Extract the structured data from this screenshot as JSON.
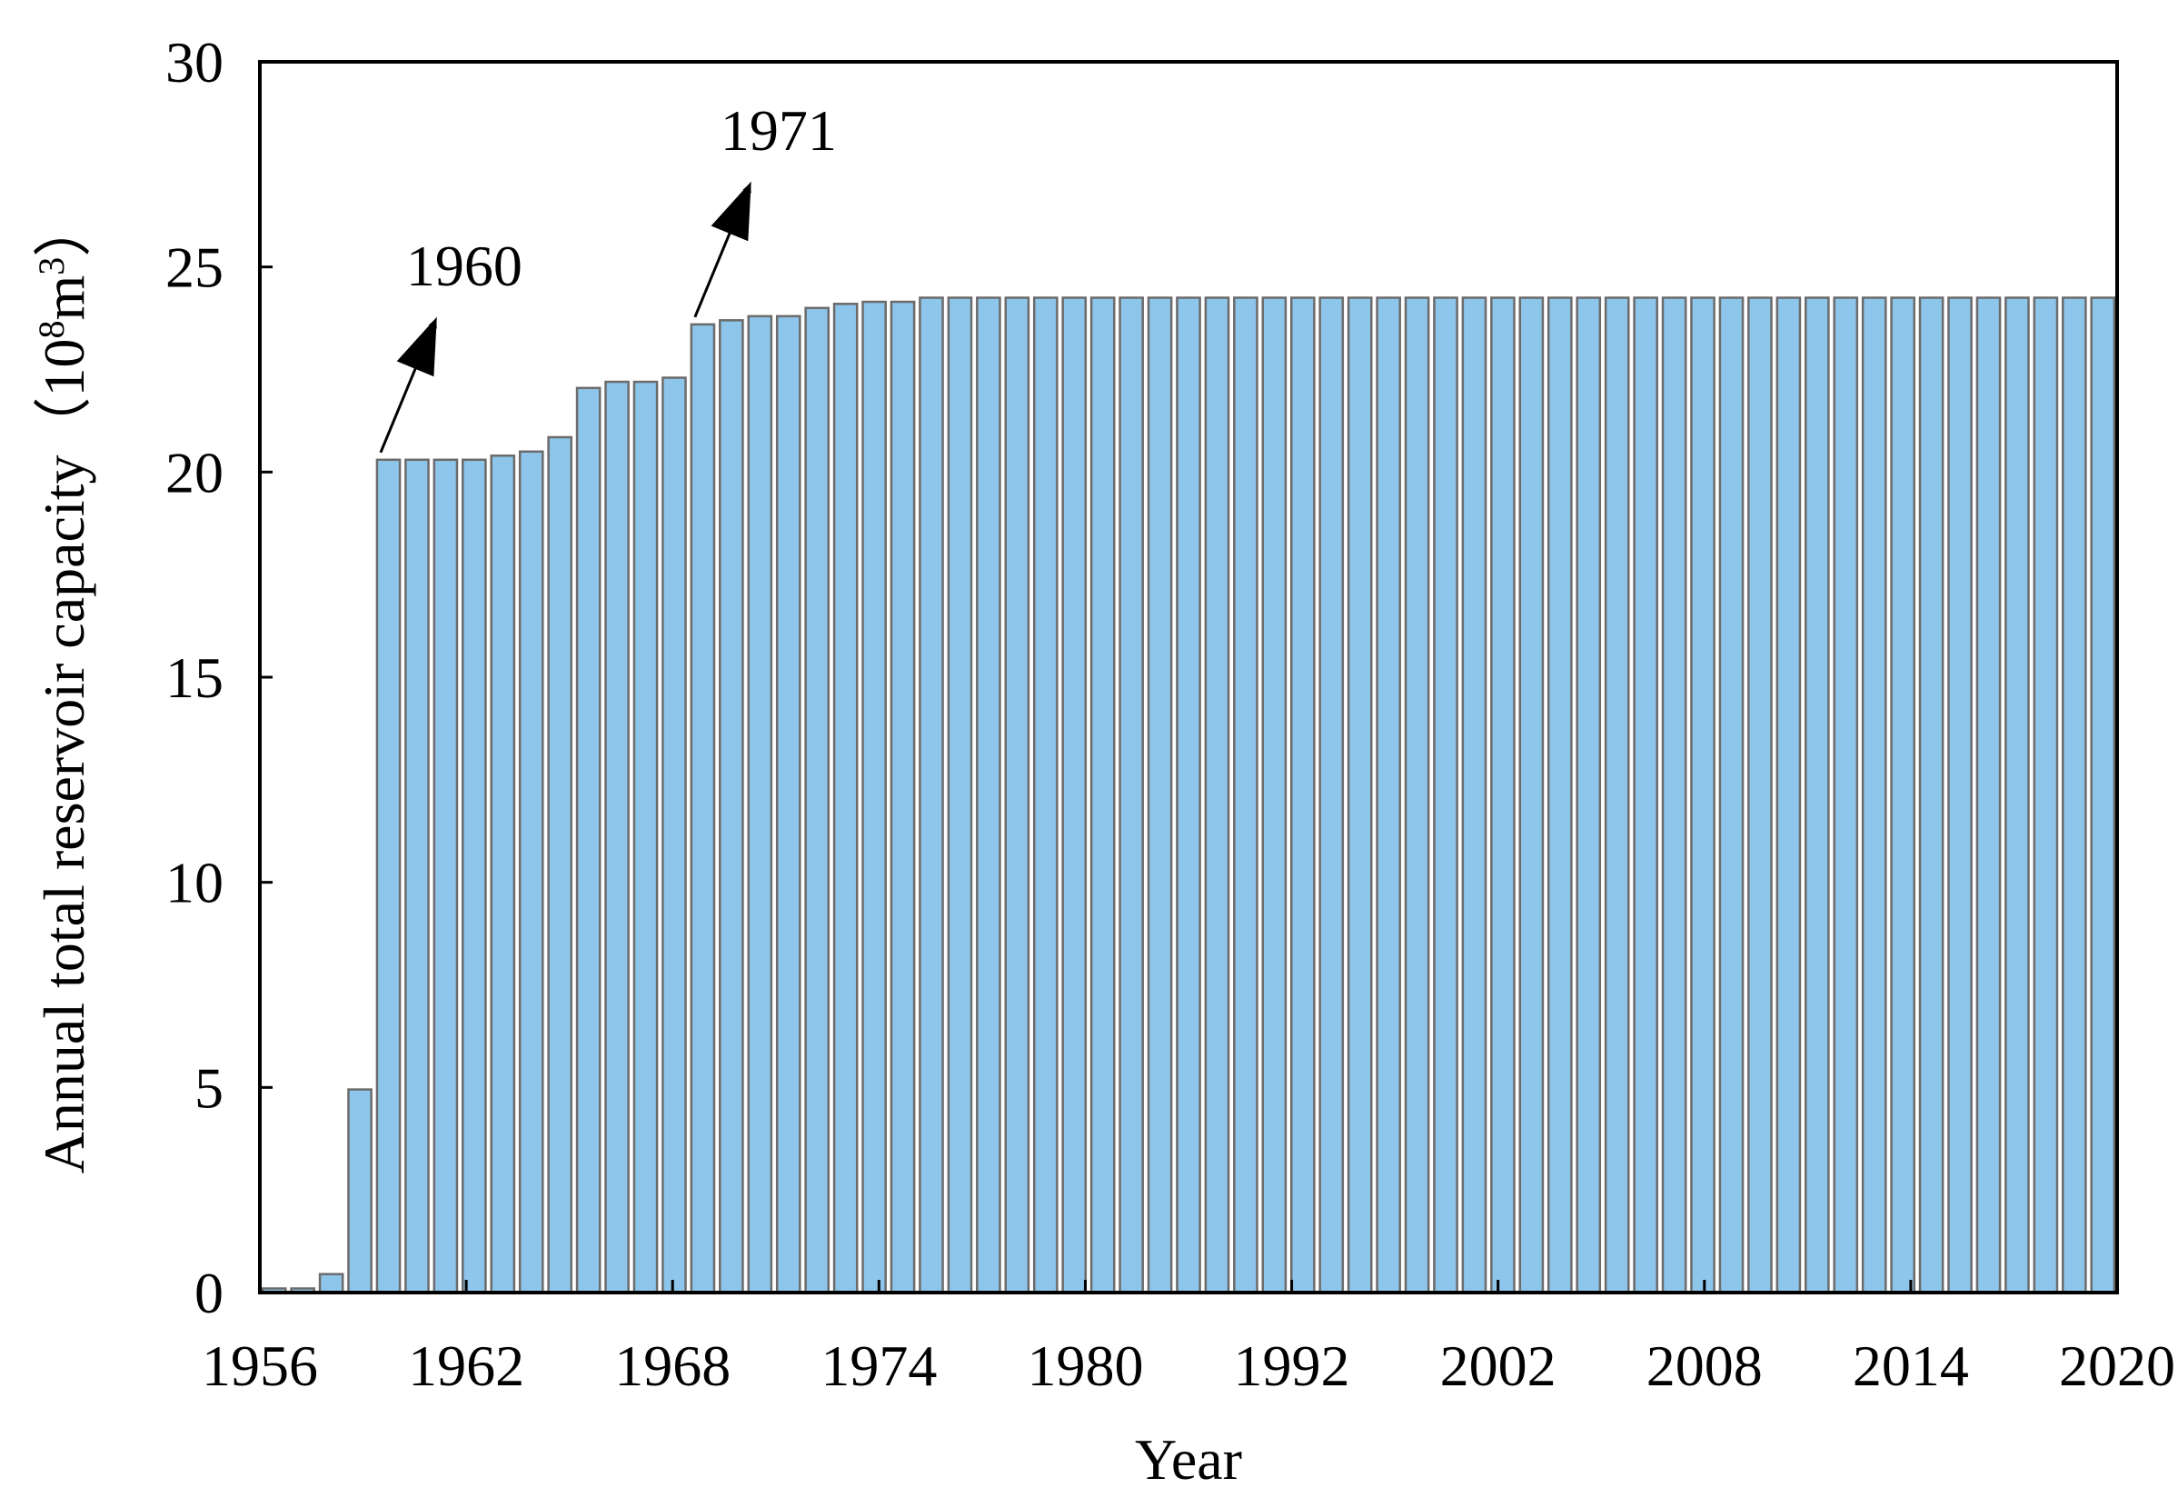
{
  "chart_data": {
    "type": "bar",
    "title": "",
    "xlabel": "Year",
    "ylabel": "Annual total reservoir capacity",
    "ylabel_unit_base": "（10",
    "ylabel_unit_exp1": "8",
    "ylabel_unit_mid": "m",
    "ylabel_unit_exp2": "3",
    "ylabel_unit_end": "）",
    "ylim": [
      0,
      30
    ],
    "yticks": [
      0,
      5,
      10,
      15,
      20,
      25,
      30
    ],
    "xtick_labels": [
      "1956",
      "1962",
      "1968",
      "1974",
      "1980",
      "1992",
      "2002",
      "2008",
      "2014",
      "2020"
    ],
    "grid": false,
    "legend": "none",
    "bar_color": "#8ec5ea",
    "bar_edge_color": "#6b6b6b",
    "categories": [
      "1956",
      "1957",
      "1958",
      "1959",
      "1960",
      "1961",
      "1962",
      "1963",
      "1964",
      "1965",
      "1966",
      "1967",
      "1968",
      "1969",
      "1970",
      "1971",
      "1972",
      "1973",
      "1974",
      "1975",
      "1976",
      "1977",
      "1978",
      "1979",
      "1980",
      "1981",
      "1982",
      "1983",
      "1984",
      "1985",
      "1986",
      "1987",
      "1988",
      "1989",
      "1990",
      "1991",
      "1992",
      "1993",
      "1994",
      "1995",
      "1996",
      "1997",
      "1998",
      "1999",
      "2000",
      "2001",
      "2002",
      "2003",
      "2004",
      "2005",
      "2006",
      "2007",
      "2008",
      "2009",
      "2010",
      "2011",
      "2012",
      "2013",
      "2014",
      "2015",
      "2016",
      "2017",
      "2018",
      "2019",
      "2020"
    ],
    "values": [
      0.1,
      0.1,
      0.45,
      4.95,
      20.3,
      20.3,
      20.3,
      20.3,
      20.4,
      20.5,
      20.85,
      22.05,
      22.2,
      22.2,
      22.3,
      23.6,
      23.7,
      23.8,
      23.8,
      24.0,
      24.1,
      24.15,
      24.15,
      24.25,
      24.25,
      24.25,
      24.25,
      24.25,
      24.25,
      24.25,
      24.25,
      24.25,
      24.25,
      24.25,
      24.25,
      24.25,
      24.25,
      24.25,
      24.25,
      24.25,
      24.25,
      24.25,
      24.25,
      24.25,
      24.25,
      24.25,
      24.25,
      24.25,
      24.25,
      24.25,
      24.25,
      24.25,
      24.25,
      24.25,
      24.25,
      24.25,
      24.25,
      24.25,
      24.25,
      24.25,
      24.25,
      24.25,
      24.25,
      24.25,
      24.25
    ],
    "annotations": [
      {
        "text": "1960",
        "category": "1960"
      },
      {
        "text": "1971",
        "category": "1971"
      }
    ]
  }
}
